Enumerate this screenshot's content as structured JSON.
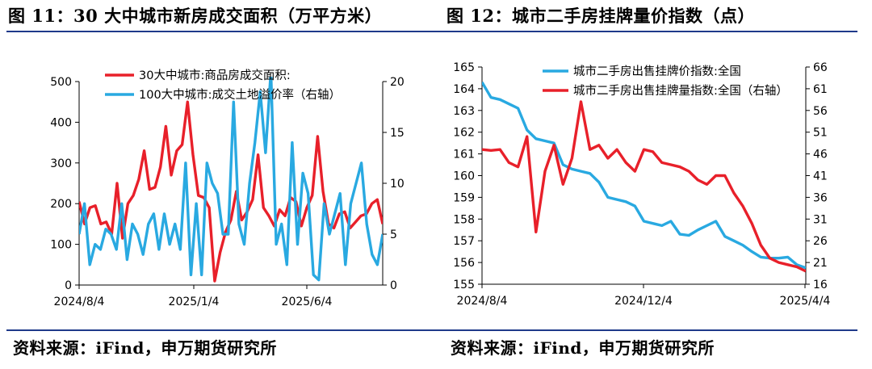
{
  "headers": {
    "left_title": "图 11：30 大中城市新房成交面积（万平方米）",
    "right_title": "图 12：城市二手房挂牌量价指数（点）"
  },
  "footers": {
    "left_source": "资料来源：iFind，申万期货研究所",
    "right_source": "资料来源：iFind，申万期货研究所"
  },
  "colors": {
    "red": "#e8202a",
    "blue": "#29a9e1",
    "rule": "#1f3a8a"
  },
  "chart_data": [
    {
      "type": "line",
      "x_tick_labels": [
        "2024/8/4",
        "2025/1/4",
        "2025/6/4"
      ],
      "y_left": {
        "range": [
          0,
          500
        ],
        "ticks": [
          "0",
          "100",
          "200",
          "300",
          "400",
          "500"
        ]
      },
      "y_right": {
        "range": [
          0,
          20
        ],
        "ticks": [
          "0",
          "5",
          "10",
          "15",
          "20"
        ]
      },
      "legend_position": "top-left",
      "series": [
        {
          "name": "30大中城市:商品房成交面积:",
          "axis": "left",
          "color": "#e8202a",
          "values": [
            205,
            150,
            190,
            195,
            150,
            155,
            125,
            250,
            115,
            200,
            220,
            260,
            330,
            235,
            240,
            290,
            390,
            270,
            330,
            345,
            450,
            320,
            220,
            215,
            190,
            10,
            80,
            130,
            160,
            230,
            160,
            180,
            210,
            320,
            190,
            170,
            145,
            185,
            170,
            215,
            205,
            145,
            190,
            220,
            365,
            230,
            150,
            140,
            175,
            180,
            140,
            155,
            170,
            175,
            200,
            210,
            150
          ]
        },
        {
          "name": "100大中城市:成交土地溢价率（右轴）",
          "axis": "right",
          "color": "#29a9e1",
          "values": [
            5,
            8,
            2,
            4,
            3.5,
            5.5,
            5,
            3.5,
            8,
            2.5,
            6,
            5,
            3,
            6,
            7,
            3.5,
            7,
            4,
            6,
            3.5,
            12,
            1,
            8,
            1,
            12,
            10,
            9,
            5,
            5,
            18,
            6,
            4,
            10,
            14,
            19,
            13,
            21,
            4,
            6,
            2,
            14,
            4,
            11,
            9,
            1,
            0.5,
            8,
            5,
            7,
            9,
            2,
            8,
            10,
            12,
            6,
            3,
            2,
            5
          ]
        }
      ]
    },
    {
      "type": "line",
      "x_tick_labels": [
        "2024/8/4",
        "2024/12/4",
        "2025/4/4"
      ],
      "y_left": {
        "range": [
          155,
          165
        ],
        "ticks": [
          "155",
          "156",
          "157",
          "158",
          "159",
          "160",
          "161",
          "162",
          "163",
          "164",
          "165"
        ]
      },
      "y_right": {
        "range": [
          16,
          66
        ],
        "ticks": [
          "16",
          "21",
          "26",
          "31",
          "36",
          "41",
          "46",
          "51",
          "56",
          "61",
          "66"
        ]
      },
      "legend_position": "top-center",
      "series": [
        {
          "name": "城市二手房出售挂牌价指数:全国",
          "axis": "left",
          "color": "#29a9e1",
          "values": [
            164.3,
            163.6,
            163.5,
            163.3,
            163.1,
            162.1,
            161.7,
            161.6,
            161.5,
            160.5,
            160.3,
            160.2,
            160.1,
            159.7,
            159.0,
            158.9,
            158.8,
            158.6,
            157.9,
            157.8,
            157.7,
            157.9,
            157.3,
            157.25,
            157.5,
            157.7,
            157.9,
            157.2,
            157.0,
            156.8,
            156.5,
            156.25,
            156.2,
            156.2,
            156.25,
            155.9,
            155.75
          ]
        },
        {
          "name": "城市二手房出售挂牌量指数:全国（右轴）",
          "axis": "right",
          "color": "#e8202a",
          "values": [
            47,
            46.8,
            47,
            44,
            43,
            50,
            28,
            42,
            48,
            39,
            45,
            58,
            47,
            48,
            45,
            47,
            44,
            42,
            47,
            46.5,
            44,
            43.5,
            43,
            42,
            40,
            39,
            41,
            41,
            37,
            34,
            30,
            25,
            22,
            21,
            20.5,
            20,
            19
          ]
        }
      ]
    }
  ]
}
